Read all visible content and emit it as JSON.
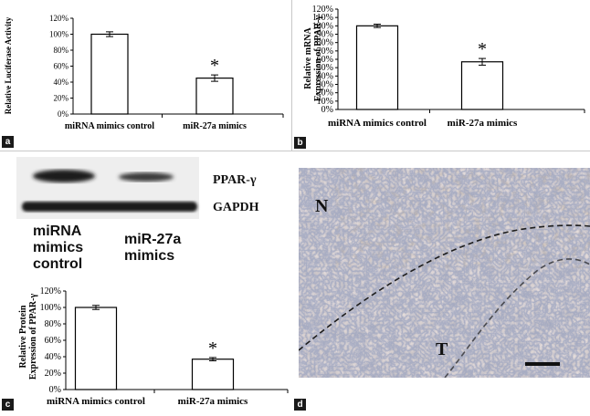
{
  "chart_data": [
    {
      "panel": "a",
      "type": "bar",
      "categories": [
        "miRNA mimics control",
        "miR-27a mimics"
      ],
      "values": [
        100,
        45
      ],
      "errors": [
        3,
        4
      ],
      "ylabel": "Relative Luciferase Activity",
      "ylim": [
        0,
        120
      ],
      "yticks": [
        "0%",
        "20%",
        "40%",
        "60%",
        "80%",
        "100%",
        "120%"
      ],
      "significance": [
        "",
        "*"
      ]
    },
    {
      "panel": "b",
      "type": "bar",
      "categories": [
        "miRNA mimics control",
        "miR-27a mimics"
      ],
      "values": [
        100,
        57
      ],
      "errors": [
        2,
        4
      ],
      "ylabel": [
        "Relative mRNA",
        "Expression of PPAR-γ"
      ],
      "ylim": [
        0,
        120
      ],
      "yticks": [
        "0%",
        "10%",
        "20%",
        "30%",
        "40%",
        "50%",
        "60%",
        "70%",
        "80%",
        "90%",
        "100%",
        "110%",
        "120%"
      ],
      "significance": [
        "",
        "*"
      ]
    },
    {
      "panel": "c",
      "type": "bar",
      "categories": [
        "miRNA mimics control",
        "miR-27a mimics"
      ],
      "values": [
        100,
        37
      ],
      "errors": [
        2.5,
        2
      ],
      "ylabel": [
        "Relative Protein",
        "Expression of PPAR-γ"
      ],
      "ylim": [
        0,
        120
      ],
      "yticks": [
        "0%",
        "20%",
        "40%",
        "60%",
        "80%",
        "100%",
        "120%"
      ],
      "significance": [
        "",
        "*"
      ]
    }
  ],
  "panel_labels": {
    "a": "a",
    "b": "b",
    "c": "c",
    "d": "d"
  },
  "blot": {
    "bands": [
      "PPAR-γ",
      "GAPDH"
    ],
    "lanes": [
      {
        "lines": [
          "miRNA",
          "mimics",
          "control"
        ]
      },
      {
        "lines": [
          "miR-27a",
          "mimics"
        ]
      }
    ]
  },
  "histology": {
    "normal_label": "N",
    "tumor_label": "T"
  }
}
